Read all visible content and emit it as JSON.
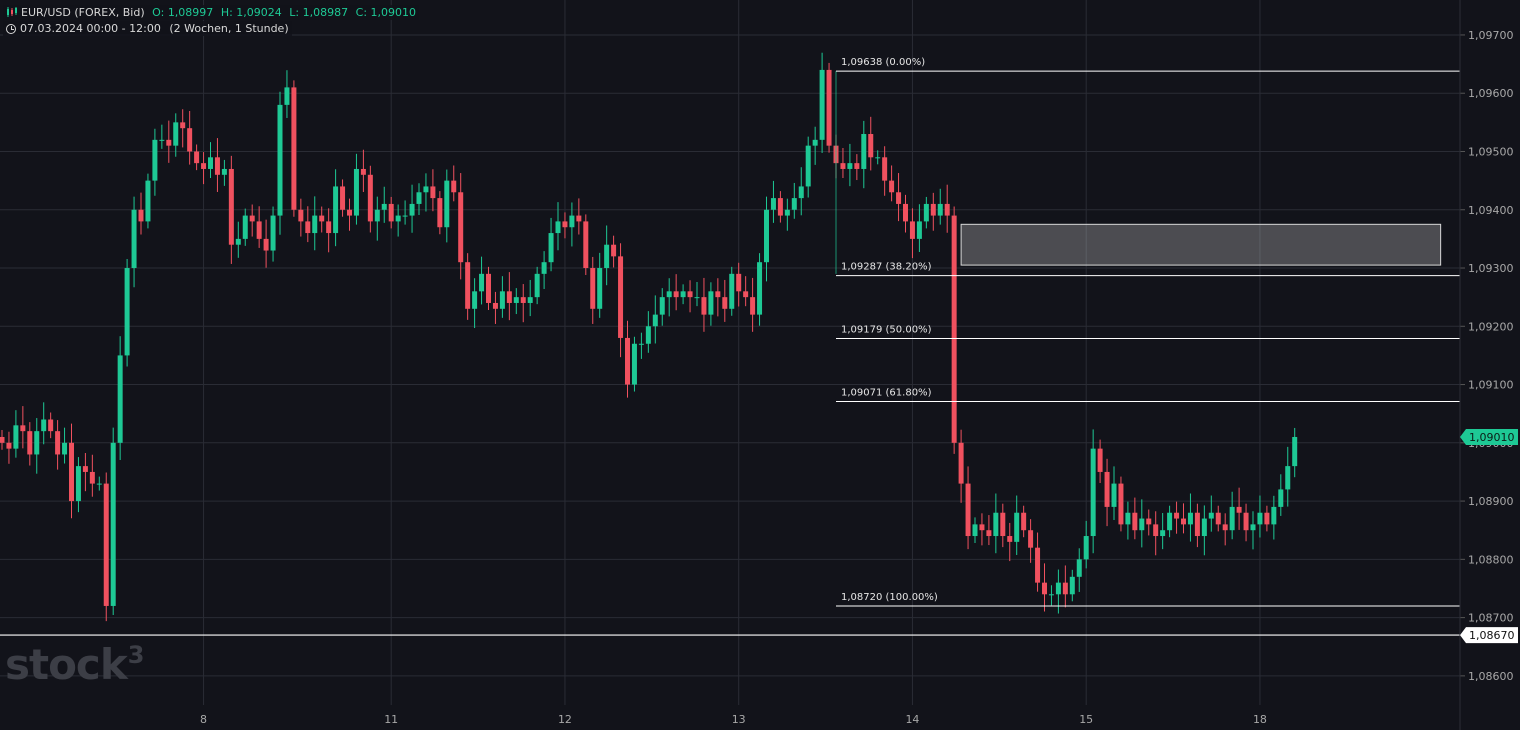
{
  "header": {
    "symbol": "EUR/USD (FOREX, Bid)",
    "open_label": "O:",
    "open": "1,08997",
    "high_label": "H:",
    "high": "1,09024",
    "low_label": "L:",
    "low": "1,08987",
    "close_label": "C:",
    "close": "1,09010",
    "period": "07.03.2024 00:00 - 12:00",
    "range": "(2 Wochen, 1 Stunde)"
  },
  "logo": {
    "text": "stock",
    "sup": "3"
  },
  "colors": {
    "background": "#12131a",
    "grid": "#2a2c35",
    "up": "#1ec995",
    "down": "#f0515f",
    "line": "#ffffff",
    "axis_text": "#a8a8a8"
  },
  "chart_data": {
    "type": "candlestick",
    "y_axis": {
      "min": 1.0855,
      "max": 1.0976,
      "ticks": [
        "1,08600",
        "1,08700",
        "1,08800",
        "1,08900",
        "1,09000",
        "1,09100",
        "1,09200",
        "1,09300",
        "1,09400",
        "1,09500",
        "1,09600",
        "1,09700"
      ],
      "tick_values": [
        1.086,
        1.087,
        1.088,
        1.089,
        1.09,
        1.091,
        1.092,
        1.093,
        1.094,
        1.095,
        1.096,
        1.097
      ],
      "side": "right"
    },
    "x_axis": {
      "labels": [
        "8",
        "11",
        "12",
        "13",
        "14",
        "15",
        "18"
      ],
      "label_bar_index": [
        29,
        56,
        81,
        106,
        131,
        156,
        181
      ]
    },
    "grid": true,
    "current_price": {
      "label": "1,09010",
      "value": 1.0901
    },
    "support_line": {
      "label": "1,08670",
      "value": 1.0867
    },
    "fibonacci": [
      {
        "label": "1,09638 (0.00%)",
        "value": 1.09638
      },
      {
        "label": "1,09287 (38.20%)",
        "value": 1.09287
      },
      {
        "label": "1,09179 (50.00%)",
        "value": 1.09179
      },
      {
        "label": "1,09071 (61.80%)",
        "value": 1.09071
      },
      {
        "label": "1,08720 (100.00%)",
        "value": 1.0872
      }
    ],
    "fib_start_bar": 120,
    "zone": {
      "top": 1.09375,
      "bottom": 1.09305,
      "start_bar": 138,
      "end_bar": 207
    },
    "closes": [
      1.09,
      1.0899,
      1.0903,
      1.0902,
      1.0898,
      1.0902,
      1.0904,
      1.0902,
      1.0898,
      1.09,
      1.089,
      1.0896,
      1.0895,
      1.0893,
      1.0893,
      1.0872,
      1.09,
      1.0915,
      1.093,
      1.094,
      1.0938,
      1.0945,
      1.0952,
      1.0952,
      1.0951,
      1.0955,
      1.0954,
      1.095,
      1.0948,
      1.0947,
      1.0949,
      1.0946,
      1.0947,
      1.0934,
      1.0935,
      1.0939,
      1.0938,
      1.0935,
      1.0933,
      1.0939,
      1.0958,
      1.0961,
      1.094,
      1.0938,
      1.0936,
      1.0939,
      1.0938,
      1.0936,
      1.0944,
      1.094,
      1.0939,
      1.0947,
      1.0946,
      1.0938,
      1.094,
      1.0941,
      1.0938,
      1.0939,
      1.0939,
      1.0941,
      1.0943,
      1.0944,
      1.0942,
      1.0937,
      1.0945,
      1.0943,
      1.0931,
      1.0923,
      1.0926,
      1.0929,
      1.0924,
      1.0923,
      1.0926,
      1.0924,
      1.0925,
      1.0924,
      1.0925,
      1.0929,
      1.0931,
      1.0936,
      1.0938,
      1.0937,
      1.0939,
      1.0938,
      1.093,
      1.0923,
      1.093,
      1.0934,
      1.0932,
      1.0918,
      1.091,
      1.0917,
      1.0917,
      1.092,
      1.0922,
      1.0925,
      1.0926,
      1.0925,
      1.0926,
      1.0925,
      1.0925,
      1.0922,
      1.0926,
      1.0925,
      1.0923,
      1.0929,
      1.0926,
      1.0925,
      1.0922,
      1.0931,
      1.094,
      1.0942,
      1.0939,
      1.094,
      1.0942,
      1.0944,
      1.0951,
      1.0952,
      1.0964,
      1.0951,
      1.0948,
      1.0947,
      1.0948,
      1.0947,
      1.0953,
      1.0949,
      1.0949,
      1.0945,
      1.0943,
      1.0941,
      1.0938,
      1.0935,
      1.0938,
      1.0941,
      1.0939,
      1.0941,
      1.0939,
      1.09,
      1.0893,
      1.0884,
      1.0886,
      1.0885,
      1.0884,
      1.0888,
      1.0884,
      1.0883,
      1.0888,
      1.0885,
      1.0882,
      1.0876,
      1.0874,
      1.0874,
      1.0876,
      1.0874,
      1.0877,
      1.088,
      1.0884,
      1.0899,
      1.0895,
      1.0889,
      1.0893,
      1.0886,
      1.0888,
      1.0885,
      1.0887,
      1.0886,
      1.0884,
      1.0885,
      1.0888,
      1.0887,
      1.0886,
      1.0888,
      1.0884,
      1.0887,
      1.0888,
      1.0886,
      1.0885,
      1.0889,
      1.0888,
      1.0885,
      1.0886,
      1.0888,
      1.0886,
      1.0889,
      1.0892,
      1.0896,
      1.0901
    ]
  }
}
